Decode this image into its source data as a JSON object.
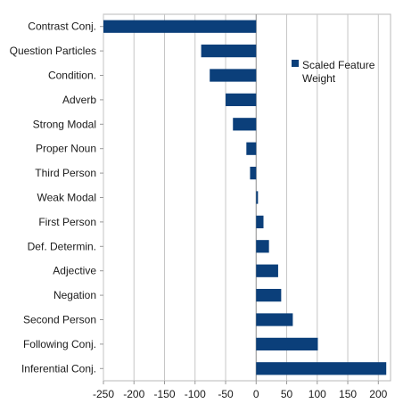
{
  "chart_data": {
    "type": "bar",
    "orientation": "horizontal",
    "categories": [
      "Contrast Conj.",
      "Question Particles",
      "Condition.",
      "Adverb",
      "Strong Modal",
      "Proper Noun",
      "Third Person",
      "Weak Modal",
      "First Person",
      "Def. Determin.",
      "Adjective",
      "Negation",
      "Second Person",
      "Following Conj.",
      "Inferential Conj."
    ],
    "series": [
      {
        "name": "Scaled Feature Weight",
        "color": "#0b3f7a",
        "values": [
          -250,
          -90,
          -76,
          -50,
          -38,
          -16,
          -10,
          3,
          12,
          21,
          36,
          41,
          60,
          101,
          213
        ]
      }
    ],
    "xlim": [
      -250,
      220
    ],
    "xticks": [
      -250,
      -200,
      -150,
      -100,
      -50,
      0,
      50,
      100,
      150,
      200
    ],
    "xtick_labels": [
      "-250",
      "-200",
      "-150",
      "-100",
      "-50",
      "0",
      "50",
      "100",
      "150",
      "200"
    ],
    "grid": "vertical",
    "legend": {
      "label": "Scaled Feature Weight",
      "position": "right"
    }
  }
}
